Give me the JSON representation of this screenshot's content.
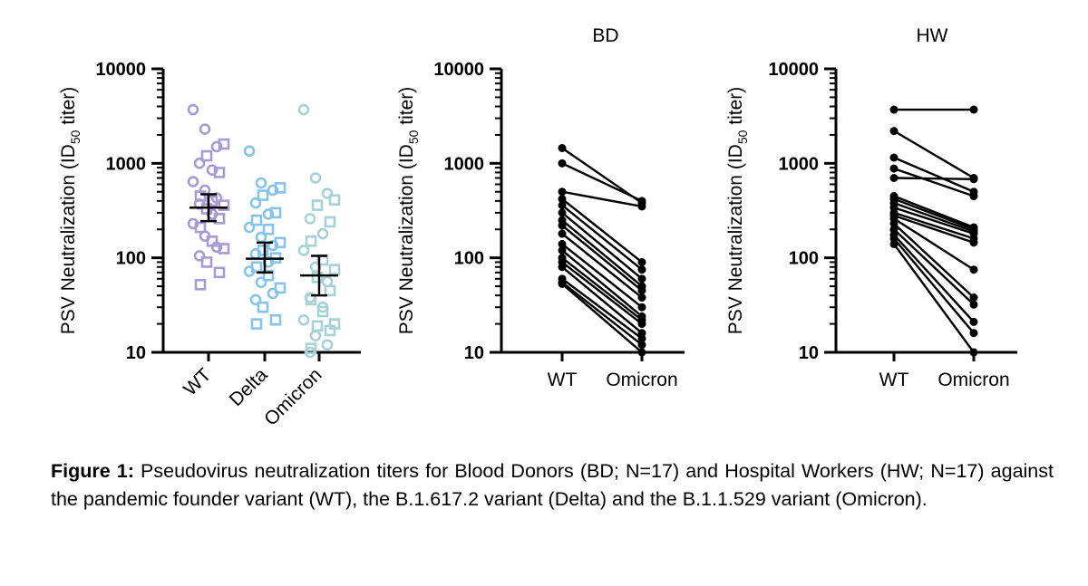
{
  "chart_data": [
    {
      "type": "scatter",
      "title": "",
      "ylabel": "PSV Neutralization (ID50 titer)",
      "ylabel_parts": {
        "pre": "PSV Neutralization (ID",
        "sub": "50",
        "post": " titer)"
      },
      "yscale": "log",
      "ylim": [
        10,
        10000
      ],
      "yticks": [
        "10",
        "100",
        "1000",
        "10000"
      ],
      "categories": [
        "WT",
        "Delta",
        "Omicron"
      ],
      "colors": {
        "WT": "#a89ad3",
        "Delta": "#86c3ea",
        "Omicron": "#a7d1d5",
        "bar": "#000000"
      },
      "series": [
        {
          "name": "WT",
          "circles": [
            3700,
            2300,
            1500,
            1000,
            850,
            640,
            520,
            430,
            370,
            290,
            230,
            170,
            130,
            105
          ],
          "squares": [
            1600,
            1200,
            800,
            450,
            400,
            360,
            330,
            260,
            210,
            150,
            125,
            90,
            70,
            52
          ],
          "mean": 340,
          "ci": [
            245,
            470
          ]
        },
        {
          "name": "Delta",
          "circles": [
            1350,
            620,
            520,
            380,
            290,
            210,
            165,
            135,
            110,
            90,
            72,
            55,
            42,
            36
          ],
          "squares": [
            550,
            460,
            300,
            250,
            200,
            145,
            120,
            100,
            80,
            65,
            48,
            30,
            22,
            20
          ],
          "mean": 98,
          "ci": [
            70,
            145
          ]
        },
        {
          "name": "Omicron",
          "circles": [
            3700,
            700,
            480,
            260,
            180,
            120,
            80,
            56,
            38,
            30,
            22,
            15,
            12,
            10
          ],
          "squares": [
            410,
            360,
            240,
            150,
            95,
            75,
            62,
            45,
            36,
            27,
            20,
            19,
            17,
            11
          ],
          "mean": 65,
          "ci": [
            40,
            105
          ]
        }
      ]
    },
    {
      "type": "line",
      "title": "BD",
      "ylabel": "PSV Neutralization (ID50 titer)",
      "ylabel_parts": {
        "pre": "PSV Neutralization (ID",
        "sub": "50",
        "post": " titer)"
      },
      "yscale": "log",
      "ylim": [
        10,
        10000
      ],
      "yticks": [
        "10",
        "100",
        "1000",
        "10000"
      ],
      "categories": [
        "WT",
        "Omicron"
      ],
      "pairs": [
        [
          1450,
          380
        ],
        [
          1000,
          400
        ],
        [
          500,
          350
        ],
        [
          420,
          90
        ],
        [
          360,
          75
        ],
        [
          300,
          60
        ],
        [
          250,
          50
        ],
        [
          220,
          45
        ],
        [
          180,
          38
        ],
        [
          140,
          30
        ],
        [
          120,
          24
        ],
        [
          100,
          22
        ],
        [
          90,
          20
        ],
        [
          80,
          16
        ],
        [
          60,
          14
        ],
        [
          55,
          12
        ],
        [
          53,
          10
        ]
      ]
    },
    {
      "type": "line",
      "title": "HW",
      "ylabel": "PSV Neutralization (ID50 titer)",
      "ylabel_parts": {
        "pre": "PSV Neutralization (ID",
        "sub": "50",
        "post": " titer)"
      },
      "yscale": "log",
      "ylim": [
        10,
        10000
      ],
      "yticks": [
        "10",
        "100",
        "1000",
        "10000"
      ],
      "categories": [
        "WT",
        "Omicron"
      ],
      "pairs": [
        [
          3700,
          3700
        ],
        [
          2200,
          700
        ],
        [
          1150,
          500
        ],
        [
          880,
          450
        ],
        [
          700,
          680
        ],
        [
          450,
          210
        ],
        [
          420,
          200
        ],
        [
          380,
          190
        ],
        [
          340,
          180
        ],
        [
          300,
          160
        ],
        [
          280,
          145
        ],
        [
          260,
          75
        ],
        [
          230,
          38
        ],
        [
          200,
          32
        ],
        [
          175,
          21
        ],
        [
          160,
          16
        ],
        [
          140,
          10
        ]
      ]
    }
  ],
  "caption": {
    "label": "Figure 1:",
    "text": " Pseudovirus neutralization titers for Blood Donors (BD; N=17) and Hospital Workers (HW; N=17) against the pandemic founder variant (WT), the B.1.617.2 variant (Delta) and the B.1.1.529 variant (Omicron)."
  }
}
